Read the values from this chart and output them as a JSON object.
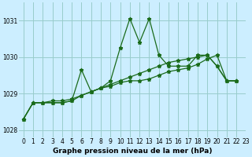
{
  "title": "Graphe pression niveau de la mer (hPa)",
  "bg_color": "#cceeff",
  "grid_color": "#99cccc",
  "line_color": "#1a6b1a",
  "xlim": [
    -0.5,
    23
  ],
  "ylim": [
    1027.8,
    1031.5
  ],
  "xticks": [
    0,
    1,
    2,
    3,
    4,
    5,
    6,
    7,
    8,
    9,
    10,
    11,
    12,
    13,
    14,
    15,
    16,
    17,
    18,
    19,
    20,
    21,
    22,
    23
  ],
  "yticks": [
    1028,
    1029,
    1030,
    1031
  ],
  "series": [
    [
      1028.3,
      1028.75,
      1028.75,
      1028.75,
      1028.75,
      1028.8,
      1029.65,
      1029.05,
      1029.15,
      1029.35,
      1030.25,
      1031.05,
      1030.4,
      1031.05,
      1030.05,
      1029.75,
      1029.75,
      1029.75,
      1030.05,
      1030.05,
      1029.75,
      1029.35,
      1029.35
    ],
    [
      1028.3,
      1028.75,
      1028.75,
      1028.75,
      1028.75,
      1028.8,
      1028.95,
      1029.05,
      1029.15,
      1029.2,
      1029.3,
      1029.35,
      1029.35,
      1029.4,
      1029.5,
      1029.6,
      1029.65,
      1029.7,
      1029.8,
      1029.95,
      1030.05,
      1029.35,
      1029.35
    ],
    [
      1028.3,
      1028.75,
      1028.75,
      1028.8,
      1028.8,
      1028.85,
      1028.95,
      1029.05,
      1029.15,
      1029.25,
      1029.35,
      1029.45,
      1029.55,
      1029.65,
      1029.75,
      1029.85,
      1029.9,
      1029.95,
      1030.0,
      1030.05,
      1029.75,
      1029.35,
      1029.35
    ]
  ],
  "tick_fontsize": 5.5,
  "xlabel_fontsize": 6.5
}
